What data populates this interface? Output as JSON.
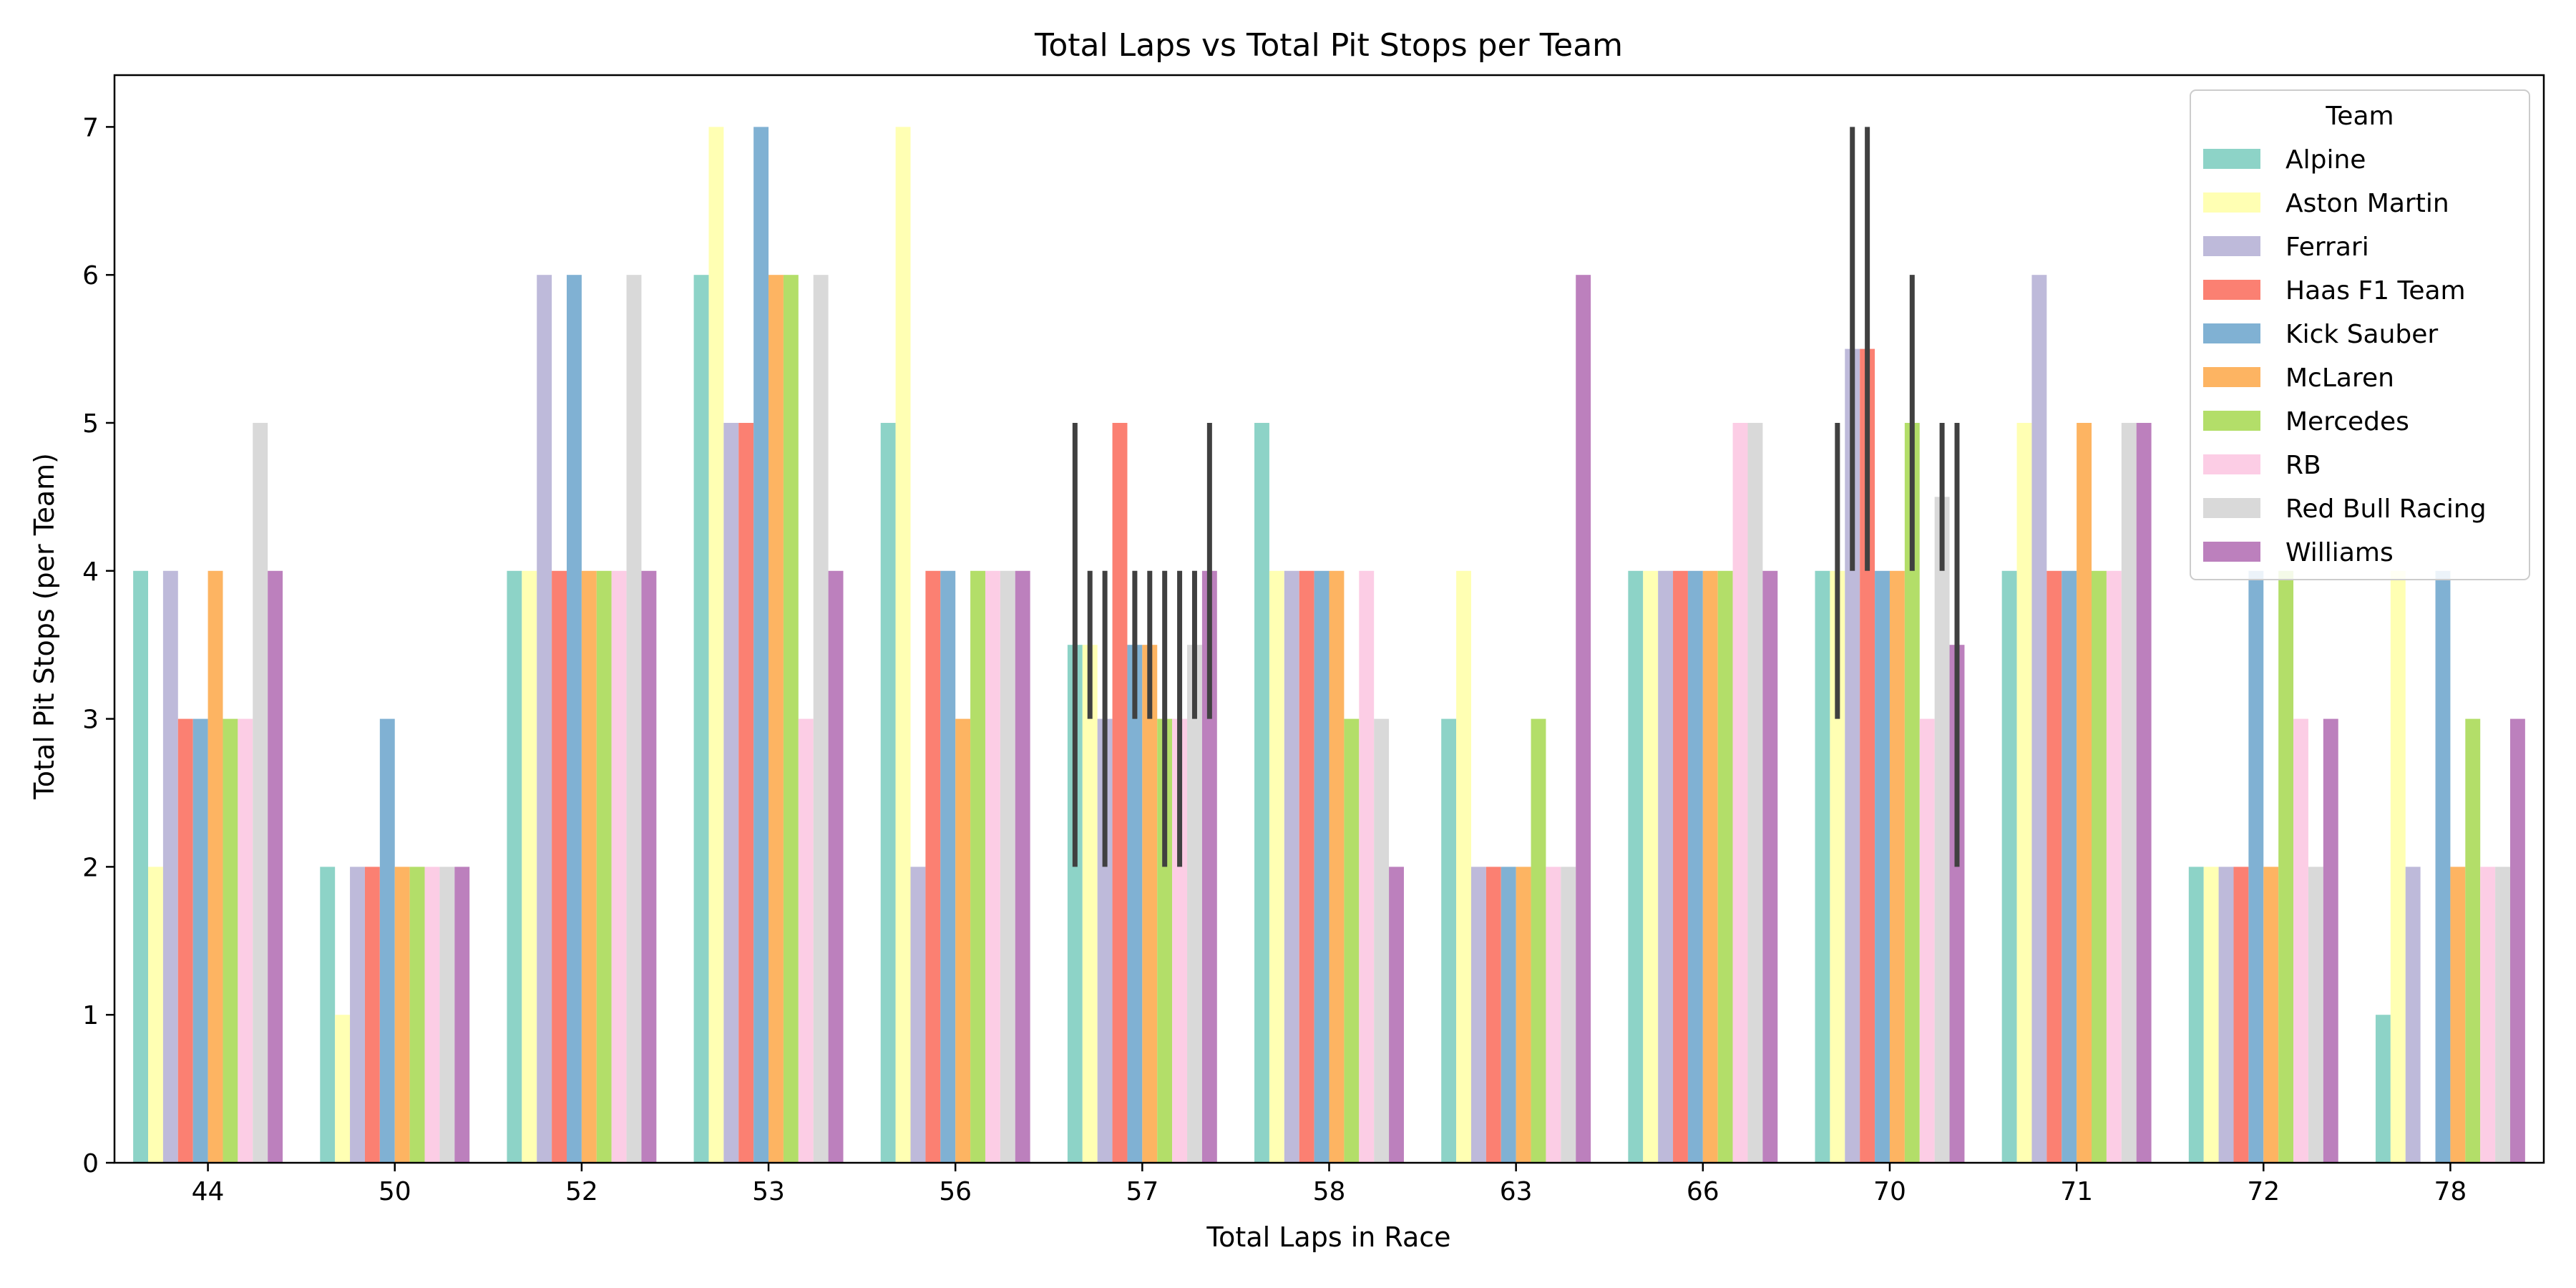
{
  "chart_data": {
    "type": "bar",
    "title": "Total Laps vs Total Pit Stops per Team",
    "xlabel": "Total Laps in Race",
    "ylabel": "Total Pit Stops (per Team)",
    "ylim": [
      0,
      7.35
    ],
    "yticks": [
      "0",
      "1",
      "2",
      "3",
      "4",
      "5",
      "6",
      "7"
    ],
    "categories": [
      "44",
      "50",
      "52",
      "53",
      "56",
      "57",
      "58",
      "63",
      "66",
      "70",
      "71",
      "72",
      "78"
    ],
    "grid": false,
    "legend": {
      "title": "Team",
      "position": "top-right"
    },
    "series": [
      {
        "name": "Alpine",
        "color": "#8dd3c7",
        "values": [
          4,
          2,
          4,
          6,
          5,
          3.5,
          5,
          3,
          4,
          4,
          4,
          2,
          1
        ],
        "errors": [
          null,
          null,
          null,
          null,
          null,
          [
            2,
            5
          ],
          null,
          null,
          null,
          null,
          null,
          null,
          null
        ]
      },
      {
        "name": "Aston Martin",
        "color": "#ffffb3",
        "values": [
          2,
          1,
          4,
          7,
          7,
          3.5,
          4,
          4,
          4,
          4,
          5,
          2,
          4
        ],
        "errors": [
          null,
          null,
          null,
          null,
          null,
          [
            3,
            4
          ],
          null,
          null,
          null,
          [
            3,
            5
          ],
          null,
          null,
          null
        ]
      },
      {
        "name": "Ferrari",
        "color": "#bebada",
        "values": [
          4,
          2,
          6,
          5,
          2,
          3,
          4,
          2,
          4,
          5.5,
          6,
          2,
          2
        ],
        "errors": [
          null,
          null,
          null,
          null,
          null,
          [
            2,
            4
          ],
          null,
          null,
          null,
          [
            4,
            7
          ],
          null,
          null,
          null
        ]
      },
      {
        "name": "Haas F1 Team",
        "color": "#fb8072",
        "values": [
          3,
          2,
          4,
          5,
          4,
          5,
          4,
          2,
          4,
          5.5,
          4,
          2,
          null
        ],
        "errors": [
          null,
          null,
          null,
          null,
          null,
          null,
          null,
          null,
          null,
          [
            4,
            7
          ],
          null,
          null,
          null
        ]
      },
      {
        "name": "Kick Sauber",
        "color": "#80b1d3",
        "values": [
          3,
          3,
          6,
          7,
          4,
          3.5,
          4,
          2,
          4,
          4,
          4,
          4,
          4
        ],
        "errors": [
          null,
          null,
          null,
          null,
          null,
          [
            3,
            4
          ],
          null,
          null,
          null,
          null,
          null,
          null,
          null
        ]
      },
      {
        "name": "McLaren",
        "color": "#fdb462",
        "values": [
          4,
          2,
          4,
          6,
          3,
          3.5,
          4,
          2,
          4,
          4,
          5,
          2,
          2
        ],
        "errors": [
          null,
          null,
          null,
          null,
          null,
          [
            3,
            4
          ],
          null,
          null,
          null,
          null,
          null,
          null,
          null
        ]
      },
      {
        "name": "Mercedes",
        "color": "#b3de69",
        "values": [
          3,
          2,
          4,
          6,
          4,
          3,
          3,
          3,
          4,
          5,
          4,
          4,
          3
        ],
        "errors": [
          null,
          null,
          null,
          null,
          null,
          [
            2,
            4
          ],
          null,
          null,
          null,
          [
            4,
            6
          ],
          null,
          null,
          null
        ]
      },
      {
        "name": "RB",
        "color": "#fccde5",
        "values": [
          3,
          2,
          4,
          3,
          4,
          3,
          4,
          2,
          5,
          3,
          4,
          3,
          2
        ],
        "errors": [
          null,
          null,
          null,
          null,
          null,
          [
            2,
            4
          ],
          null,
          null,
          null,
          null,
          null,
          null,
          null
        ]
      },
      {
        "name": "Red Bull Racing",
        "color": "#d9d9d9",
        "values": [
          5,
          2,
          6,
          6,
          4,
          3.5,
          3,
          2,
          5,
          4.5,
          5,
          2,
          2
        ],
        "errors": [
          null,
          null,
          null,
          null,
          null,
          [
            3,
            4
          ],
          null,
          null,
          null,
          [
            4,
            5
          ],
          null,
          null,
          null
        ]
      },
      {
        "name": "Williams",
        "color": "#bc80bd",
        "values": [
          4,
          2,
          4,
          4,
          4,
          4,
          2,
          6,
          4,
          3.5,
          5,
          3,
          3
        ],
        "errors": [
          null,
          null,
          null,
          null,
          null,
          [
            3,
            5
          ],
          null,
          null,
          null,
          [
            2,
            5
          ],
          null,
          null,
          null
        ]
      }
    ]
  }
}
